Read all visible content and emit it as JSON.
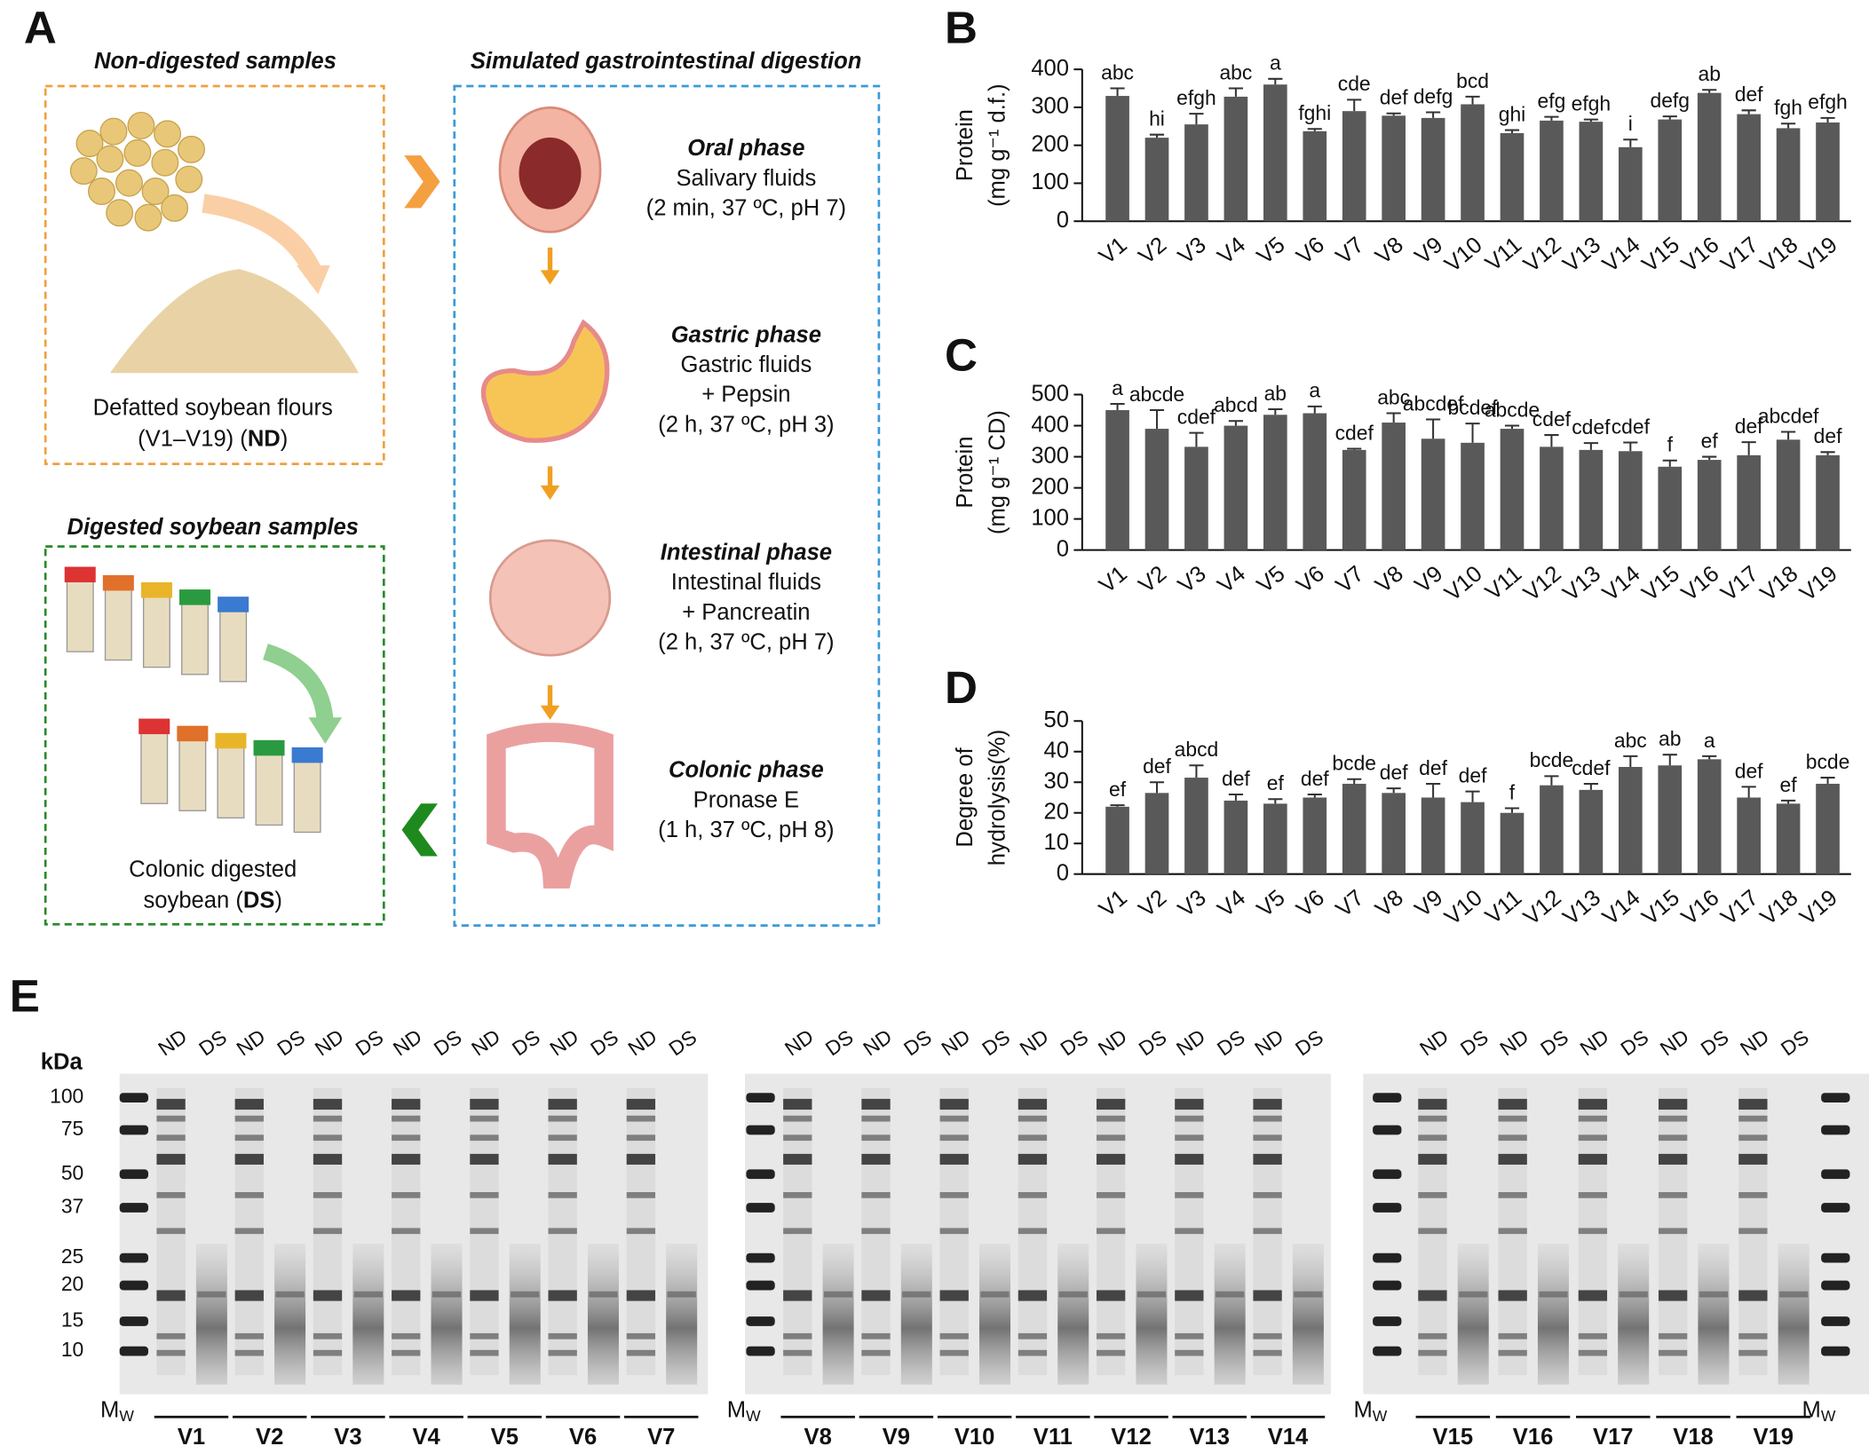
{
  "panel_labels": [
    "A",
    "B",
    "C",
    "D",
    "E"
  ],
  "panel_a": {
    "non_digested_title": "Non-digested samples",
    "non_digested_caption": [
      "Defatted soybean flours",
      "(V1–V19) (",
      "ND",
      ")"
    ],
    "digested_title": "Digested soybean samples",
    "digested_caption": [
      "Colonic digested",
      "soybean (",
      "DS",
      ")"
    ],
    "digestion_title": "Simulated gastrointestinal digestion",
    "phases": [
      {
        "name": "Oral phase",
        "lines": [
          "Salivary fluids",
          "(2 min, 37 ºC, pH 7)"
        ]
      },
      {
        "name": "Gastric phase",
        "lines": [
          "Gastric fluids",
          "+ Pepsin",
          "(2 h, 37 ºC, pH 3)"
        ]
      },
      {
        "name": "Intestinal phase",
        "lines": [
          "Intestinal fluids",
          "+ Pancreatin",
          "(2 h, 37 ºC, pH 7)"
        ]
      },
      {
        "name": "Colonic phase",
        "lines": [
          "Pronase E",
          "(1 h, 37 ºC, pH 8)"
        ]
      }
    ]
  },
  "chart_data": [
    {
      "type": "bar",
      "color": "#595959",
      "y_label": [
        "Protein",
        "(mg g⁻¹ d.f.)"
      ],
      "categories": [
        "V1",
        "V2",
        "V3",
        "V4",
        "V5",
        "V6",
        "V7",
        "V8",
        "V9",
        "V10",
        "V11",
        "V12",
        "V13",
        "V14",
        "V15",
        "V16",
        "V17",
        "V18",
        "V19"
      ],
      "values": [
        330,
        220,
        255,
        328,
        360,
        237,
        290,
        278,
        272,
        308,
        232,
        265,
        262,
        195,
        268,
        338,
        282,
        245,
        260
      ],
      "errors": [
        20,
        8,
        28,
        22,
        15,
        6,
        30,
        6,
        15,
        20,
        8,
        10,
        6,
        20,
        8,
        8,
        10,
        12,
        12
      ],
      "significance_letters": [
        "abc",
        "hi",
        "efgh",
        "abc",
        "a",
        "fghi",
        "cde",
        "def",
        "defg",
        "bcd",
        "ghi",
        "efg",
        "efgh",
        "i",
        "defg",
        "ab",
        "def",
        "fgh",
        "efgh"
      ],
      "ylim": [
        0,
        400
      ],
      "yticks": [
        0,
        100,
        200,
        300,
        400
      ]
    },
    {
      "type": "bar",
      "color": "#595959",
      "y_label": [
        "Protein",
        "(mg g⁻¹ CD)"
      ],
      "categories": [
        "V1",
        "V2",
        "V3",
        "V4",
        "V5",
        "V6",
        "V7",
        "V8",
        "V9",
        "V10",
        "V11",
        "V12",
        "V13",
        "V14",
        "V15",
        "V16",
        "V17",
        "V18",
        "V19"
      ],
      "values": [
        450,
        390,
        332,
        400,
        435,
        440,
        322,
        410,
        358,
        345,
        390,
        332,
        322,
        318,
        268,
        290,
        305,
        355,
        305
      ],
      "errors": [
        20,
        60,
        45,
        15,
        18,
        22,
        4,
        30,
        62,
        62,
        10,
        38,
        22,
        28,
        20,
        10,
        42,
        25,
        10
      ],
      "significance_letters": [
        "a",
        "abcde",
        "cdef",
        "abcd",
        "ab",
        "a",
        "cdef",
        "abc",
        "abcdef",
        "bcdef",
        "abcde",
        "cdef",
        "cdef",
        "cdef",
        "f",
        "ef",
        "def",
        "abcdef",
        "def"
      ],
      "ylim": [
        0,
        500
      ],
      "yticks": [
        0,
        100,
        200,
        300,
        400,
        500
      ]
    },
    {
      "type": "bar",
      "color": "#595959",
      "y_label": [
        "Degree of",
        "hydrolysis(%)"
      ],
      "categories": [
        "V1",
        "V2",
        "V3",
        "V4",
        "V5",
        "V6",
        "V7",
        "V8",
        "V9",
        "V10",
        "V11",
        "V12",
        "V13",
        "V14",
        "V15",
        "V16",
        "V17",
        "V18",
        "V19"
      ],
      "values": [
        22,
        26.5,
        31.5,
        24,
        23,
        25,
        29.5,
        26.5,
        25,
        23.5,
        20,
        29,
        27.5,
        35,
        35.5,
        37.5,
        25,
        23,
        29.5
      ],
      "errors": [
        0.5,
        3.5,
        4,
        2,
        1.5,
        1,
        1.5,
        1.5,
        4.5,
        3.5,
        1.5,
        3,
        2,
        3.5,
        3.5,
        1,
        3.5,
        1,
        2
      ],
      "significance_letters": [
        "ef",
        "def",
        "abcd",
        "def",
        "ef",
        "def",
        "bcde",
        "def",
        "def",
        "def",
        "f",
        "bcde",
        "cdef",
        "abc",
        "ab",
        "a",
        "def",
        "ef",
        "bcde"
      ],
      "ylim": [
        0,
        50
      ],
      "yticks": [
        0,
        10,
        20,
        30,
        40,
        50
      ]
    }
  ],
  "panel_e": {
    "kda_label": "kDa",
    "markers": [
      100,
      75,
      50,
      37,
      25,
      20,
      15,
      10
    ],
    "lane_labels": [
      "ND",
      "DS"
    ],
    "mw_label": "M",
    "mw_sub": "W",
    "gels": [
      [
        "V1",
        "V2",
        "V3",
        "V4",
        "V5",
        "V6",
        "V7"
      ],
      [
        "V8",
        "V9",
        "V10",
        "V11",
        "V12",
        "V13",
        "V14"
      ],
      [
        "V15",
        "V16",
        "V17",
        "V18",
        "V19"
      ]
    ]
  }
}
